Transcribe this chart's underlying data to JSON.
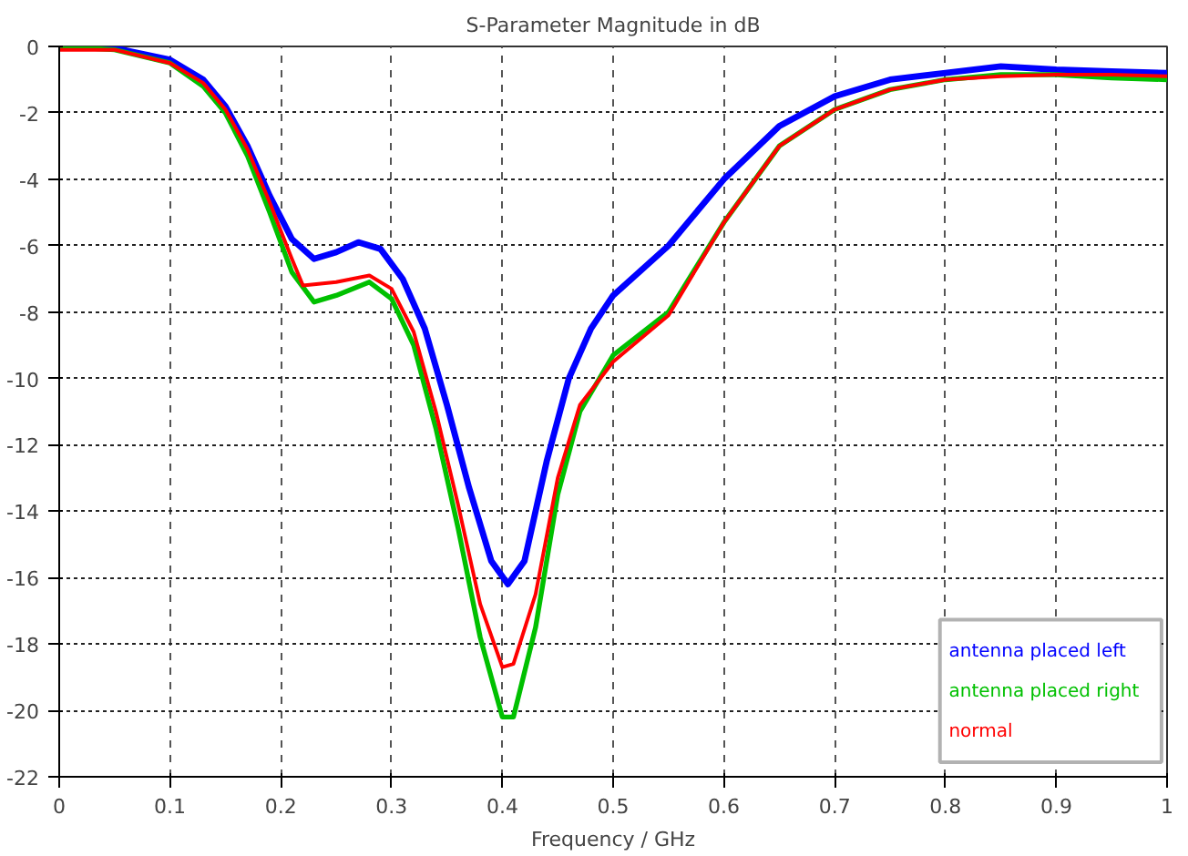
{
  "chart_data": {
    "type": "line",
    "title": "S-Parameter Magnitude in dB",
    "xlabel": "Frequency / GHz",
    "xlim": [
      0,
      1
    ],
    "ylim": [
      -22,
      0
    ],
    "xticks": [
      0,
      0.1,
      0.2,
      0.3,
      0.4,
      0.5,
      0.6,
      0.7,
      0.8,
      0.9,
      1
    ],
    "yticks": [
      0,
      -2,
      -4,
      -6,
      -8,
      -10,
      -12,
      -14,
      -16,
      -18,
      -20,
      -22
    ],
    "grid": true,
    "legend": "bottom right",
    "line_style": "solid",
    "marker": "none",
    "series": [
      {
        "name": "antenna placed left",
        "color": "#0000ff",
        "x": [
          0,
          0.05,
          0.1,
          0.13,
          0.15,
          0.17,
          0.19,
          0.21,
          0.23,
          0.25,
          0.27,
          0.29,
          0.31,
          0.33,
          0.35,
          0.37,
          0.39,
          0.405,
          0.42,
          0.44,
          0.46,
          0.48,
          0.5,
          0.55,
          0.6,
          0.65,
          0.7,
          0.75,
          0.8,
          0.85,
          0.9,
          0.95,
          1
        ],
        "values": [
          0,
          -0.05,
          -0.4,
          -1.0,
          -1.8,
          -3.0,
          -4.5,
          -5.8,
          -6.4,
          -6.2,
          -5.9,
          -6.1,
          -7.0,
          -8.5,
          -10.8,
          -13.3,
          -15.5,
          -16.2,
          -15.5,
          -12.5,
          -10,
          -8.5,
          -7.5,
          -6.0,
          -4.0,
          -2.4,
          -1.5,
          -1.0,
          -0.8,
          -0.6,
          -0.7,
          -0.75,
          -0.8
        ]
      },
      {
        "name": "antenna placed right",
        "color": "#00c000",
        "x": [
          0,
          0.05,
          0.1,
          0.13,
          0.15,
          0.17,
          0.19,
          0.21,
          0.23,
          0.25,
          0.28,
          0.3,
          0.32,
          0.34,
          0.36,
          0.38,
          0.4,
          0.41,
          0.43,
          0.45,
          0.47,
          0.5,
          0.55,
          0.6,
          0.65,
          0.7,
          0.75,
          0.8,
          0.85,
          0.9,
          0.95,
          1
        ],
        "values": [
          0,
          -0.1,
          -0.5,
          -1.2,
          -2.0,
          -3.3,
          -5.0,
          -6.8,
          -7.7,
          -7.5,
          -7.1,
          -7.6,
          -9.0,
          -11.5,
          -14.5,
          -17.8,
          -20.2,
          -20.2,
          -17.5,
          -13.5,
          -11,
          -9.3,
          -8.0,
          -5.3,
          -3.0,
          -1.9,
          -1.3,
          -1.0,
          -0.85,
          -0.85,
          -0.95,
          -1.0
        ]
      },
      {
        "name": "normal",
        "color": "#ff0000",
        "x": [
          0,
          0.05,
          0.1,
          0.13,
          0.15,
          0.17,
          0.19,
          0.21,
          0.22,
          0.25,
          0.28,
          0.3,
          0.32,
          0.34,
          0.36,
          0.38,
          0.4,
          0.41,
          0.43,
          0.45,
          0.47,
          0.5,
          0.55,
          0.6,
          0.65,
          0.7,
          0.75,
          0.8,
          0.85,
          0.9,
          0.95,
          1
        ],
        "values": [
          -0.1,
          -0.1,
          -0.5,
          -1.1,
          -1.9,
          -3.1,
          -4.7,
          -6.4,
          -7.2,
          -7.1,
          -6.9,
          -7.3,
          -8.6,
          -11.0,
          -13.8,
          -16.8,
          -18.7,
          -18.6,
          -16.5,
          -13,
          -10.8,
          -9.5,
          -8.1,
          -5.3,
          -3.0,
          -1.9,
          -1.3,
          -1.0,
          -0.9,
          -0.85,
          -0.85,
          -0.9
        ]
      }
    ]
  }
}
